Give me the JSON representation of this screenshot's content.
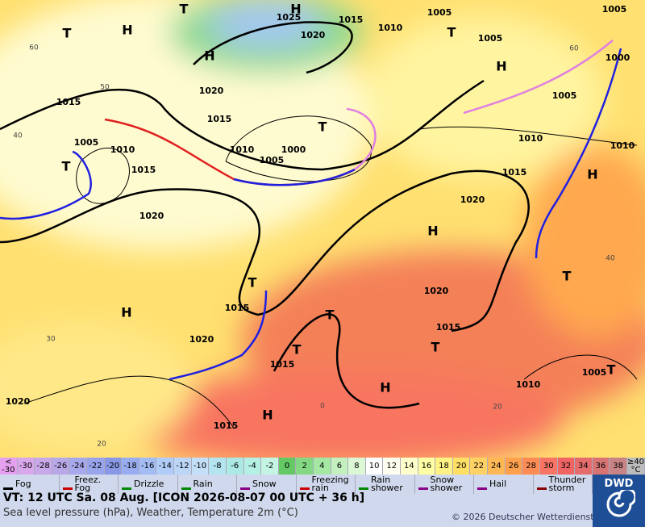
{
  "map": {
    "isobar_labels": [
      1025,
      1015,
      1005,
      1005,
      1010,
      1020,
      1005,
      1000,
      1020,
      1015,
      1015,
      1005,
      1005,
      1010,
      1010,
      1000,
      1005,
      1010,
      1010,
      1015,
      1015,
      1020,
      1020,
      1015,
      1020,
      1015,
      1020,
      1015,
      1005,
      1010,
      1020,
      1015
    ],
    "centers": [
      "H",
      "T",
      "H",
      "T",
      "H",
      "T",
      "H",
      "T",
      "T",
      "H",
      "H",
      "T",
      "H",
      "T",
      "T",
      "T",
      "T",
      "H",
      "H",
      "T"
    ],
    "grid_labels": [
      "60",
      "50",
      "40",
      "30",
      "20",
      "0",
      "20",
      "40",
      "60"
    ]
  },
  "legend": {
    "scale": [
      {
        "label": "<\n-30",
        "color": "#e6a0f0"
      },
      {
        "label": "-30",
        "color": "#d9a8ec"
      },
      {
        "label": "-28",
        "color": "#c8a8e8"
      },
      {
        "label": "-26",
        "color": "#b8a8e8"
      },
      {
        "label": "-24",
        "color": "#a8a8ec"
      },
      {
        "label": "-22",
        "color": "#98a4ec"
      },
      {
        "label": "-20",
        "color": "#8898e4"
      },
      {
        "label": "-18",
        "color": "#98acf0"
      },
      {
        "label": "-16",
        "color": "#a4bcf4"
      },
      {
        "label": "-14",
        "color": "#b0ccf8"
      },
      {
        "label": "-12",
        "color": "#bcd6f8"
      },
      {
        "label": "-10",
        "color": "#c4e0f8"
      },
      {
        "label": "-8",
        "color": "#b4e4f0"
      },
      {
        "label": "-6",
        "color": "#ace8e4"
      },
      {
        "label": "-4",
        "color": "#b4f0e4"
      },
      {
        "label": "-2",
        "color": "#c4f4e4"
      },
      {
        "label": "0",
        "color": "#64c864"
      },
      {
        "label": "2",
        "color": "#84d884"
      },
      {
        "label": "4",
        "color": "#a4e8a4"
      },
      {
        "label": "6",
        "color": "#c4f0c0"
      },
      {
        "label": "8",
        "color": "#dcf8d4"
      },
      {
        "label": "10",
        "color": "#ffffff"
      },
      {
        "label": "12",
        "color": "#fffff0"
      },
      {
        "label": "14",
        "color": "#ffffcc"
      },
      {
        "label": "16",
        "color": "#ffffa4"
      },
      {
        "label": "18",
        "color": "#fff284"
      },
      {
        "label": "20",
        "color": "#ffe064"
      },
      {
        "label": "22",
        "color": "#ffd064"
      },
      {
        "label": "24",
        "color": "#ffb854"
      },
      {
        "label": "26",
        "color": "#ffa04c"
      },
      {
        "label": "28",
        "color": "#ff8c54"
      },
      {
        "label": "30",
        "color": "#f87464"
      },
      {
        "label": "32",
        "color": "#f06464"
      },
      {
        "label": "34",
        "color": "#e46c6c"
      },
      {
        "label": "36",
        "color": "#d87474"
      },
      {
        "label": "38",
        "color": "#c88484"
      },
      {
        "label": "≥40\n°C",
        "color": "#bcbcbc"
      }
    ],
    "weather": [
      "Fog",
      "Freez.\nFog",
      "Drizzle",
      "Rain",
      "Snow",
      "Freezing\nrain",
      "Rain\nshower",
      "Snow\nshower",
      "Hail",
      "Thunder\nstorm"
    ]
  },
  "footer": {
    "valid_time": "VT: 12 UTC Sa.  08 Aug. [ICON 2026-08-07  00 UTC + 36 h]",
    "subtitle": "Sea level pressure (hPa), Weather, Temperature 2m (°C)",
    "copyright": "© 2026 Deutscher Wetterdienst",
    "logo": "DWD"
  }
}
